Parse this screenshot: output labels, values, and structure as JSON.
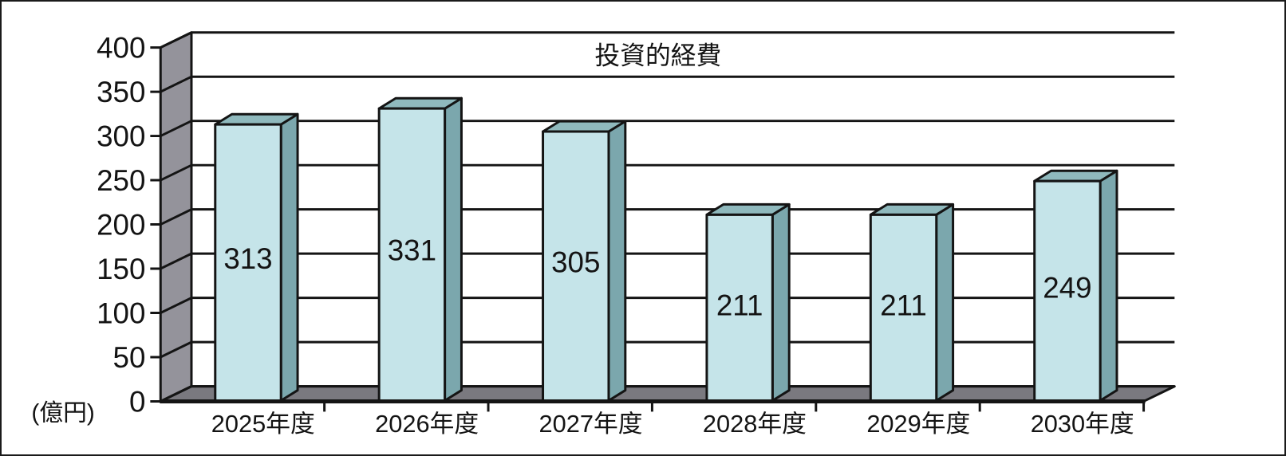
{
  "chart_data": {
    "type": "bar",
    "style": "3d-column",
    "title": "投資的経費",
    "unit_label": "(億円)",
    "categories": [
      "2025年度",
      "2026年度",
      "2027年度",
      "2028年度",
      "2029年度",
      "2030年度"
    ],
    "values": [
      313,
      331,
      305,
      211,
      211,
      249
    ],
    "value_labels_shown": true,
    "ylim": [
      0,
      400
    ],
    "ytick_step": 50,
    "yticks": [
      400,
      350,
      300,
      250,
      200,
      150,
      100,
      50,
      0
    ],
    "grid": true,
    "legend_position": "none",
    "colors": {
      "bar_front": "#c5e4e9",
      "bar_top": "#8fb9bd",
      "bar_side": "#7ba7ad",
      "wall": "#94939b",
      "floor": "#7a797f",
      "outline": "#141414",
      "background": "#ffffff",
      "text": "#141414"
    }
  }
}
